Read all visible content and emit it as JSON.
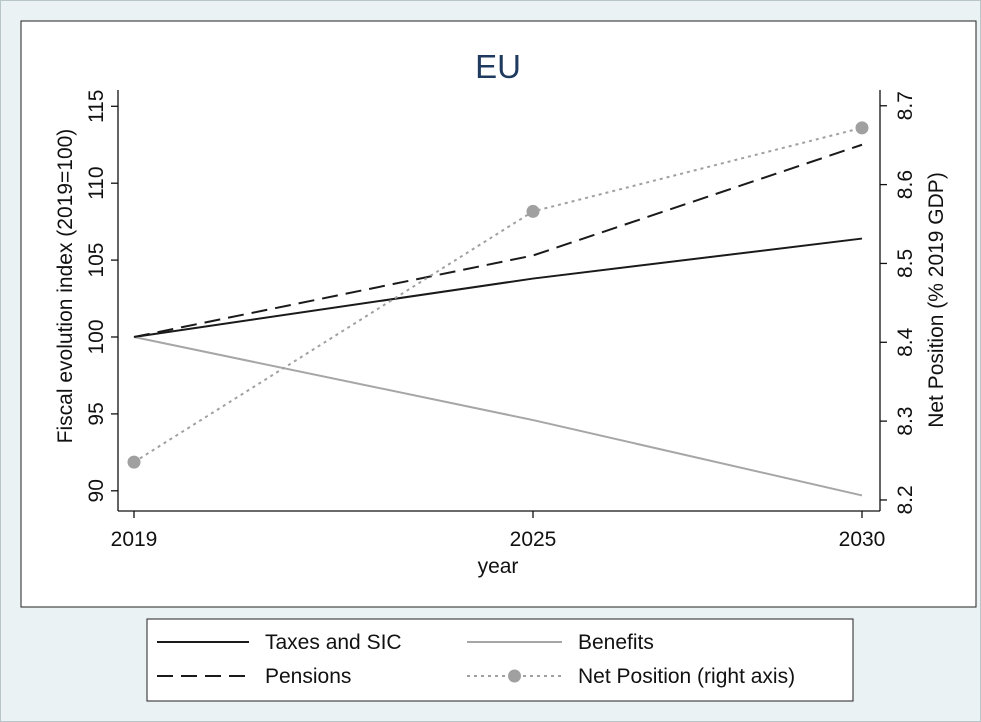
{
  "chart_data": {
    "type": "line",
    "title": "EU",
    "xlabel": "year",
    "ylabel": "Fiscal evolution index (2019=100)",
    "y2label": "Net Position (% 2019 GDP)",
    "x": [
      2019,
      2025,
      2030
    ],
    "x_ticks": [
      "2019",
      "2025",
      "2030"
    ],
    "ylim": [
      89,
      116
    ],
    "yticks": [
      90,
      95,
      100,
      105,
      110,
      115
    ],
    "y2lim": [
      8.186,
      8.72
    ],
    "y2ticks": [
      8.2,
      8.3,
      8.4,
      8.5,
      8.6,
      8.7
    ],
    "grid": false,
    "legend_position": "bottom",
    "series": [
      {
        "name": "Taxes and SIC",
        "axis": "left",
        "style": "solid",
        "color": "#1a1a1a",
        "values": [
          100,
          103.8,
          106.4
        ]
      },
      {
        "name": "Benefits",
        "axis": "left",
        "style": "solid",
        "color": "#a6a6a6",
        "values": [
          100,
          94.6,
          89.7
        ]
      },
      {
        "name": "Pensions",
        "axis": "left",
        "style": "dashed",
        "color": "#1a1a1a",
        "values": [
          100,
          105.3,
          112.5
        ]
      },
      {
        "name": "Net Position (right axis)",
        "axis": "right",
        "style": "dotted-markers",
        "color": "#a0a0a0",
        "values": [
          8.248,
          8.566,
          8.672
        ]
      }
    ]
  }
}
